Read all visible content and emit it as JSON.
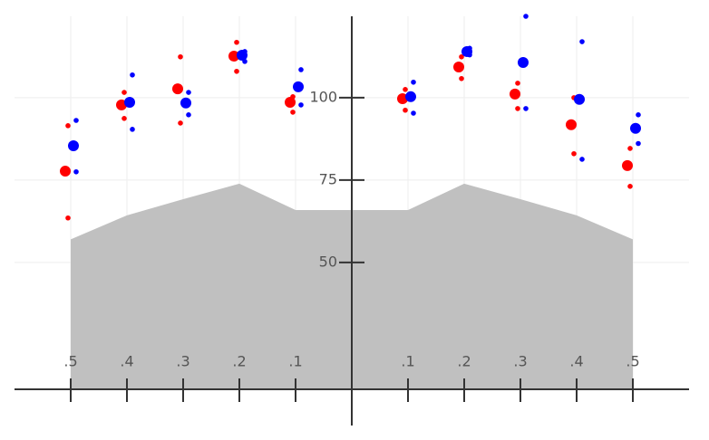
{
  "chart_data": {
    "type": "scatter",
    "x": [
      -0.5,
      -0.4,
      -0.3,
      -0.2,
      -0.1,
      0.1,
      0.2,
      0.3,
      0.4,
      0.5
    ],
    "xlim": [
      -0.6,
      0.6
    ],
    "xticks": [
      {
        "value": -0.5,
        "label": ".5"
      },
      {
        "value": -0.4,
        "label": ".4"
      },
      {
        "value": -0.3,
        "label": ".3"
      },
      {
        "value": -0.2,
        "label": ".2"
      },
      {
        "value": -0.1,
        "label": ".1"
      },
      {
        "value": 0.1,
        "label": ".1"
      },
      {
        "value": 0.2,
        "label": ".2"
      },
      {
        "value": 0.3,
        "label": ".3"
      },
      {
        "value": 0.4,
        "label": ".4"
      },
      {
        "value": 0.5,
        "label": ".5"
      }
    ],
    "ylim": [
      11.5,
      124.7
    ],
    "yticks": [
      50,
      75,
      100
    ],
    "grid": true,
    "area": {
      "color": "#c0c0c0",
      "values": [
        57,
        64.3,
        69.2,
        73.9,
        65.9,
        65.9,
        73.9,
        69.2,
        64.3,
        57
      ]
    },
    "series": [
      {
        "color": "#ff0000",
        "values": [
          77.7,
          97.8,
          102.7,
          112.6,
          98.6,
          99.7,
          109.3,
          101.1,
          91.8,
          79.4
        ],
        "upper": [
          91.5,
          101.6,
          112.4,
          116.8,
          100.3,
          102.5,
          112.4,
          104.4,
          100,
          84.6
        ],
        "lower": [
          63.5,
          93.7,
          92.3,
          108.0,
          95.6,
          96.2,
          105.8,
          96.7,
          83.0,
          73.1
        ]
      },
      {
        "color": "#0000ff",
        "values": [
          85.4,
          98.6,
          98.4,
          112.9,
          103.3,
          100.3,
          114,
          110.7,
          99.5,
          90.7
        ],
        "upper": [
          93.1,
          106.9,
          101.6,
          114,
          108.5,
          104.7,
          115,
          124.7,
          117.0,
          94.8
        ],
        "lower": [
          77.5,
          90.4,
          94.8,
          111,
          97.8,
          95.3,
          113,
          96.7,
          81.3,
          86.1
        ]
      }
    ]
  }
}
